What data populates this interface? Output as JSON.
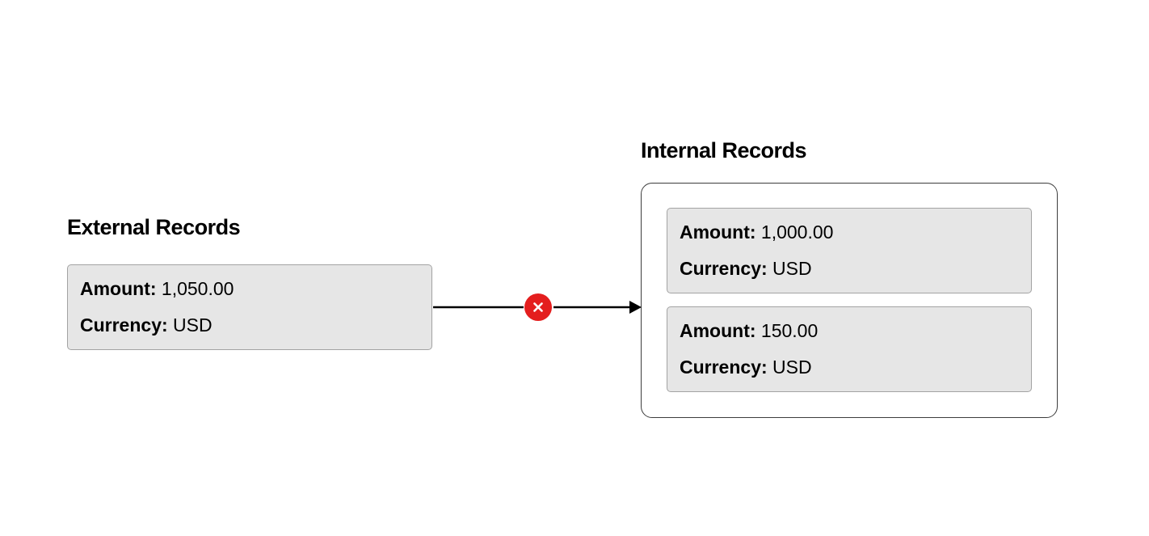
{
  "external": {
    "title": "External Records",
    "records": [
      {
        "amount_label": "Amount:",
        "amount_value": "1,050.00",
        "currency_label": "Currency:",
        "currency_value": "USD"
      }
    ]
  },
  "internal": {
    "title": "Internal Records",
    "records": [
      {
        "amount_label": "Amount:",
        "amount_value": "1,000.00",
        "currency_label": "Currency:",
        "currency_value": "USD"
      },
      {
        "amount_label": "Amount:",
        "amount_value": "150.00",
        "currency_label": "Currency:",
        "currency_value": "USD"
      }
    ]
  },
  "connector": {
    "status": "mismatch",
    "status_icon": "x-mark-icon",
    "status_color": "#e41e1e",
    "line_color": "#000000"
  }
}
